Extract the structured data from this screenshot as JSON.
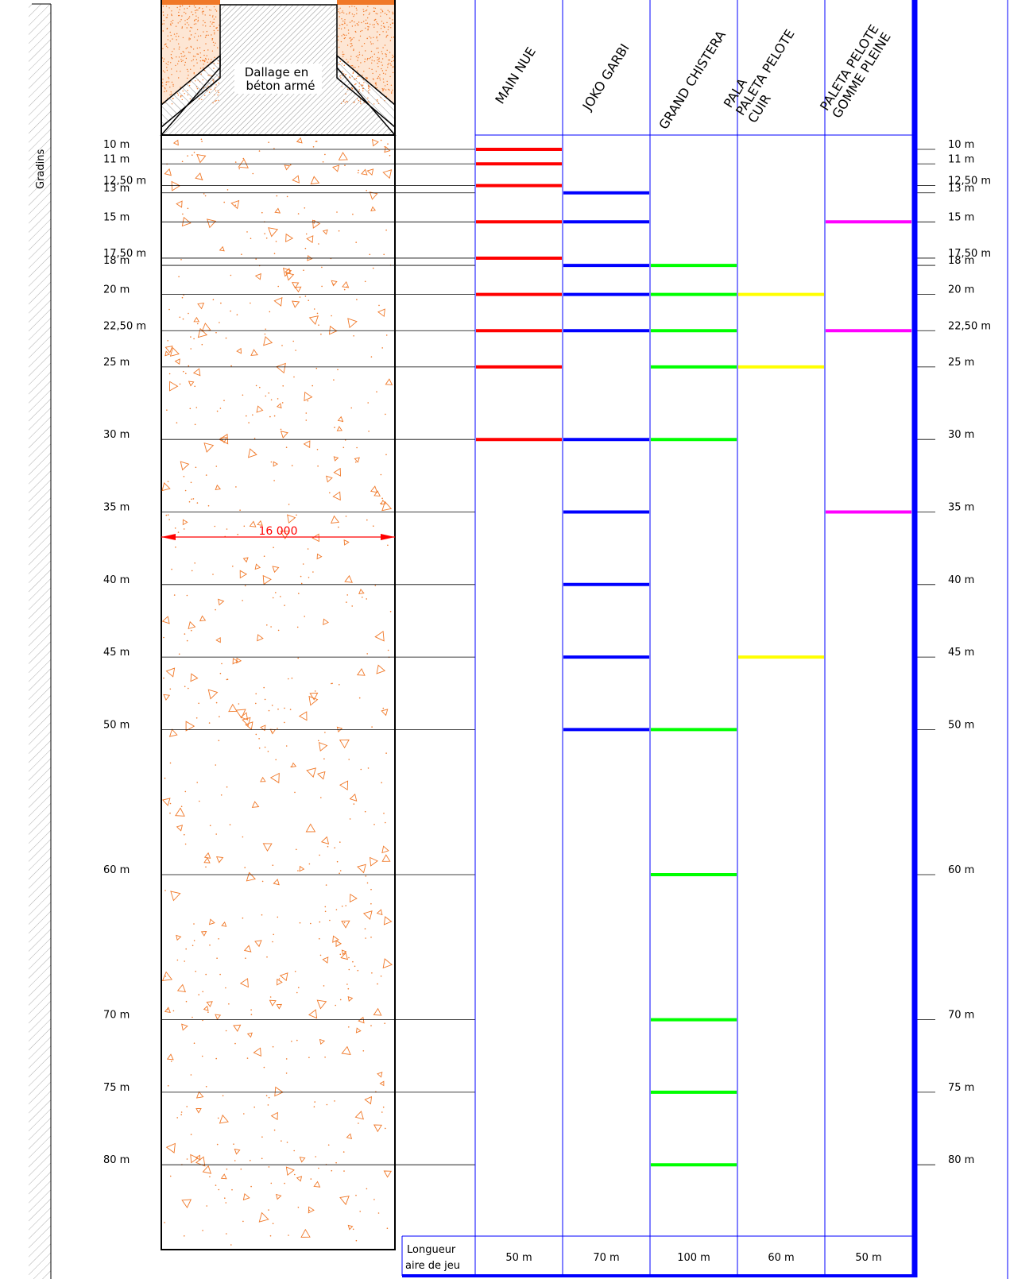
{
  "side_label": "Gradins",
  "slab_label_line1": "Dallage en",
  "slab_label_line2": "béton armé",
  "width_dimension": "16 000",
  "distance_labels": [
    {
      "d": 10,
      "label": "10  m"
    },
    {
      "d": 11,
      "label": "11  m"
    },
    {
      "d": 12.5,
      "label": "12,50  m"
    },
    {
      "d": 13,
      "label": "13  m"
    },
    {
      "d": 15,
      "label": "15  m"
    },
    {
      "d": 17.5,
      "label": "17,50  m"
    },
    {
      "d": 18,
      "label": "18  m"
    },
    {
      "d": 20,
      "label": "20  m"
    },
    {
      "d": 22.5,
      "label": "22,50  m"
    },
    {
      "d": 25,
      "label": "25  m"
    },
    {
      "d": 30,
      "label": "30  m"
    },
    {
      "d": 35,
      "label": "35  m"
    },
    {
      "d": 40,
      "label": "40  m"
    },
    {
      "d": 45,
      "label": "45  m"
    },
    {
      "d": 50,
      "label": "50  m"
    },
    {
      "d": 60,
      "label": "60  m"
    },
    {
      "d": 70,
      "label": "70  m"
    },
    {
      "d": 75,
      "label": "75  m"
    },
    {
      "d": 80,
      "label": "80  m"
    }
  ],
  "disciplines": [
    {
      "lines": [
        "MAIN  NUE"
      ],
      "color": "#ff0000",
      "marks": [
        10,
        11,
        12.5,
        15,
        17.5,
        20,
        22.5,
        25,
        30
      ],
      "length": "50  m"
    },
    {
      "lines": [
        "JOKO  GARBI"
      ],
      "color": "#0000ff",
      "marks": [
        13,
        15,
        18,
        20,
        22.5,
        30,
        35,
        40,
        45,
        50
      ],
      "length": "70  m"
    },
    {
      "lines": [
        "GRAND  CHISTERA"
      ],
      "color": "#00ff00",
      "marks": [
        18,
        20,
        22.5,
        25,
        30,
        50,
        60,
        70,
        75,
        80
      ],
      "length": "100  m"
    },
    {
      "lines": [
        "PALA",
        "PALETA  PELOTE",
        "CUIR"
      ],
      "color": "#ffff00",
      "marks": [
        20,
        25,
        45
      ],
      "length": "60  m"
    },
    {
      "lines": [
        "PALETA  PELOTE",
        "GOMME  PLEINE"
      ],
      "color": "#ff00ff",
      "marks": [
        15,
        22.5,
        35
      ],
      "length": "50  m"
    }
  ],
  "footer_label_line1": "Longueur",
  "footer_label_line2": "aire de jeu",
  "colors": {
    "grid": "#0000ff",
    "sand": "#f07828",
    "dimension": "#ff0000"
  }
}
